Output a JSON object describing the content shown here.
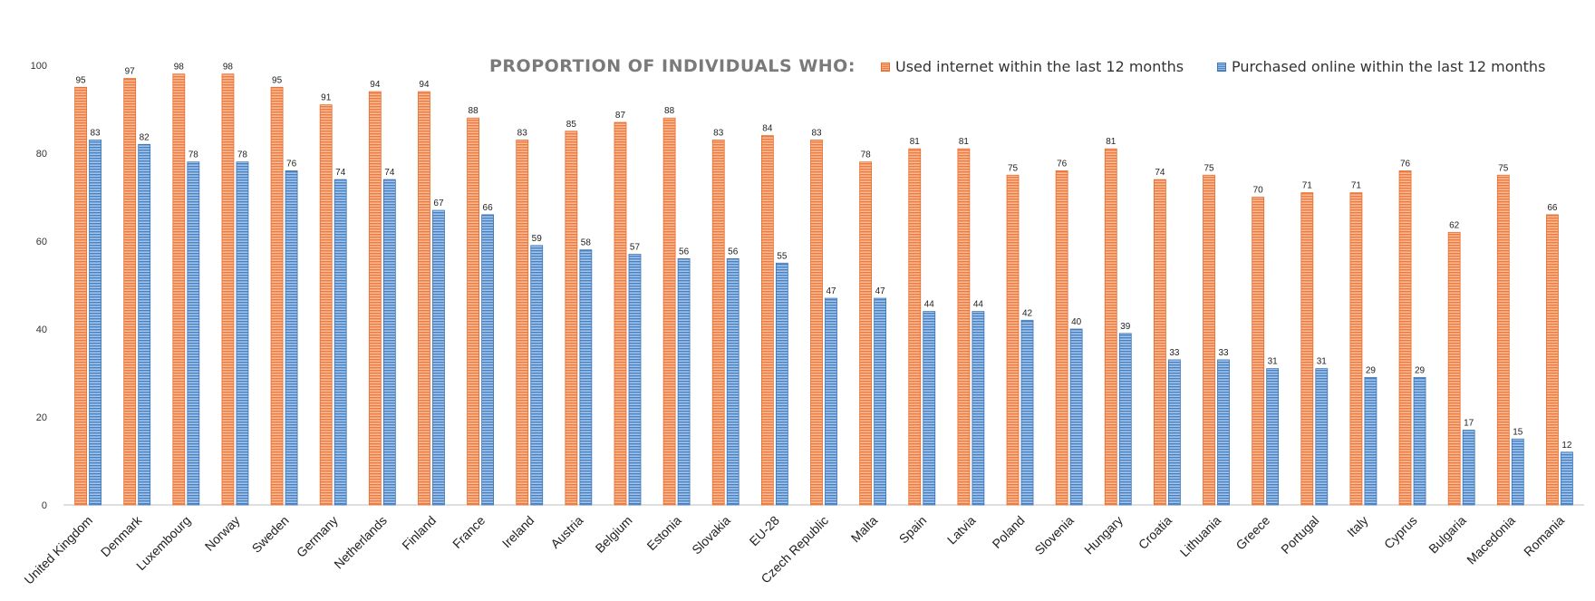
{
  "chart_data": {
    "type": "bar",
    "title": "PROPORTION OF INDIVIDUALS WHO:",
    "xlabel": "",
    "ylabel": "",
    "ylim": [
      0,
      100
    ],
    "yticks": [
      0,
      20,
      40,
      60,
      80,
      100
    ],
    "grid": false,
    "legend_position": "top-right",
    "categories": [
      "United Kingdom",
      "Denmark",
      "Luxembourg",
      "Norway",
      "Sweden",
      "Germany",
      "Netherlands",
      "Finland",
      "France",
      "Ireland",
      "Austria",
      "Belgium",
      "Estonia",
      "Slovakia",
      "EU-28",
      "Czech Republic",
      "Malta",
      "Spain",
      "Latvia",
      "Poland",
      "Slovenia",
      "Hungary",
      "Croatia",
      "Lithuania",
      "Greece",
      "Portugal",
      "Italy",
      "Cyprus",
      "Bulgaria",
      "Macedonia",
      "Romania"
    ],
    "series": [
      {
        "name": "Used internet within the last 12 months",
        "color": "#ef7d43",
        "values": [
          95,
          97,
          98,
          98,
          95,
          91,
          94,
          94,
          88,
          83,
          85,
          87,
          88,
          83,
          84,
          83,
          78,
          81,
          81,
          75,
          76,
          81,
          74,
          75,
          70,
          71,
          71,
          76,
          62,
          75,
          66
        ]
      },
      {
        "name": "Purchased online within the last 12 months",
        "color": "#4a86c8",
        "values": [
          83,
          82,
          78,
          78,
          76,
          74,
          74,
          67,
          66,
          59,
          58,
          57,
          56,
          56,
          55,
          47,
          47,
          44,
          44,
          42,
          40,
          39,
          33,
          33,
          31,
          31,
          29,
          29,
          17,
          15,
          12
        ]
      }
    ]
  }
}
